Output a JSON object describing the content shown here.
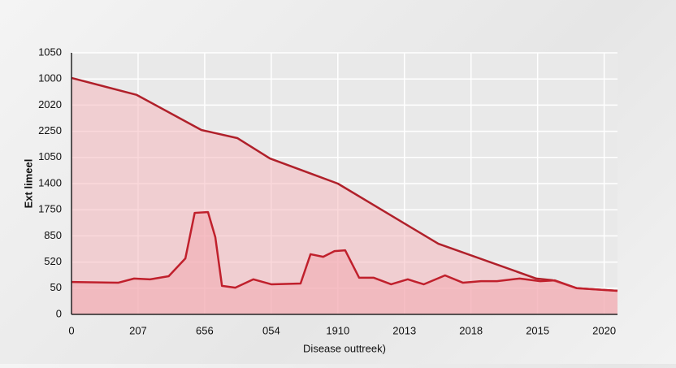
{
  "chart_data": {
    "type": "area",
    "y_label": "Ext limeel",
    "x_label": "Disease outtreek)",
    "xlim": [
      0,
      8.2
    ],
    "ylim": [
      0,
      10
    ],
    "grid": true,
    "xticks": [
      0,
      {
        "value": 1,
        "label": "207"
      },
      {
        "value": 2,
        "label": "656"
      },
      {
        "value": 3,
        "label": "054"
      },
      {
        "value": 4,
        "label": "1910"
      },
      {
        "value": 5,
        "label": "2013"
      },
      {
        "value": 6,
        "label": "2018"
      },
      {
        "value": 7,
        "label": "2015"
      },
      {
        "value": 8,
        "label": "2020"
      }
    ],
    "yticks": [
      0,
      {
        "value": 1,
        "label": "50"
      },
      {
        "value": 2,
        "label": "520"
      },
      {
        "value": 3,
        "label": "850"
      },
      {
        "value": 4,
        "label": "1750"
      },
      {
        "value": 5,
        "label": "1400"
      },
      {
        "value": 6,
        "label": "1050"
      },
      {
        "value": 7,
        "label": "2250"
      },
      {
        "value": 8,
        "label": "2020"
      },
      {
        "value": 9,
        "label": "1000"
      },
      {
        "value": 10,
        "label": "1050"
      }
    ],
    "series": [
      {
        "color": "#b0202a",
        "fill": "#f5b8bd",
        "x": [
          0,
          0.98,
          1.95,
          2.49,
          2.98,
          4.0,
          5.51,
          6.98,
          7.22,
          7.59,
          8.2
        ],
        "values": [
          9.04,
          8.39,
          7.05,
          6.74,
          5.96,
          5.0,
          2.7,
          1.37,
          1.31,
          1.0,
          0.9
        ]
      },
      {
        "color": "#c0202c",
        "fill": "#f3aab0",
        "x": [
          0,
          0.7,
          0.94,
          1.18,
          1.46,
          1.71,
          1.85,
          2.05,
          2.16,
          2.26,
          2.46,
          2.73,
          3.0,
          3.44,
          3.59,
          3.78,
          3.95,
          4.11,
          4.32,
          4.54,
          4.8,
          5.05,
          5.29,
          5.61,
          5.88,
          6.15,
          6.39,
          6.73,
          7.04,
          7.26,
          7.59,
          8.2
        ],
        "values": [
          1.24,
          1.21,
          1.37,
          1.34,
          1.46,
          2.14,
          3.88,
          3.91,
          2.95,
          1.09,
          1.02,
          1.34,
          1.15,
          1.18,
          2.3,
          2.2,
          2.42,
          2.45,
          1.4,
          1.4,
          1.15,
          1.34,
          1.15,
          1.49,
          1.21,
          1.27,
          1.27,
          1.37,
          1.27,
          1.3,
          1.0,
          0.9
        ]
      }
    ]
  }
}
